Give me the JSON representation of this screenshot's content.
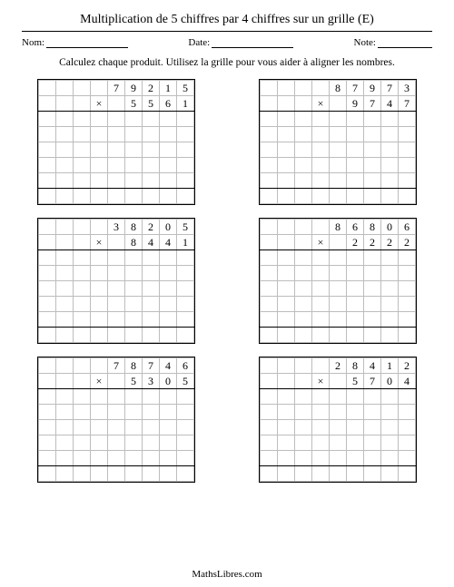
{
  "title": "Multiplication de 5 chiffres par 4 chiffres sur un grille (E)",
  "fields": {
    "name_label": "Nom:",
    "date_label": "Date:",
    "note_label": "Note:"
  },
  "instruction": "Calculez chaque produit. Utilisez la grille pour vous aider à aligner les nombres.",
  "footer": "MathsLibres.com",
  "grid": {
    "cols": 9,
    "blank_rows": 6,
    "cell_border": "#bdbdbd",
    "outer_border": "#000000",
    "digit_color": "#000000"
  },
  "problems": [
    {
      "top": [
        "",
        "",
        "",
        "",
        "7",
        "9",
        "2",
        "1",
        "5"
      ],
      "bot": [
        "",
        "",
        "",
        "×",
        "",
        "5",
        "5",
        "6",
        "1"
      ]
    },
    {
      "top": [
        "",
        "",
        "",
        "",
        "8",
        "7",
        "9",
        "7",
        "3"
      ],
      "bot": [
        "",
        "",
        "",
        "×",
        "",
        "9",
        "7",
        "4",
        "7"
      ]
    },
    {
      "top": [
        "",
        "",
        "",
        "",
        "3",
        "8",
        "2",
        "0",
        "5"
      ],
      "bot": [
        "",
        "",
        "",
        "×",
        "",
        "8",
        "4",
        "4",
        "1"
      ]
    },
    {
      "top": [
        "",
        "",
        "",
        "",
        "8",
        "6",
        "8",
        "0",
        "6"
      ],
      "bot": [
        "",
        "",
        "",
        "×",
        "",
        "2",
        "2",
        "2",
        "2"
      ]
    },
    {
      "top": [
        "",
        "",
        "",
        "",
        "7",
        "8",
        "7",
        "4",
        "6"
      ],
      "bot": [
        "",
        "",
        "",
        "×",
        "",
        "5",
        "3",
        "0",
        "5"
      ]
    },
    {
      "top": [
        "",
        "",
        "",
        "",
        "2",
        "8",
        "4",
        "1",
        "2"
      ],
      "bot": [
        "",
        "",
        "",
        "×",
        "",
        "5",
        "7",
        "0",
        "4"
      ]
    }
  ]
}
